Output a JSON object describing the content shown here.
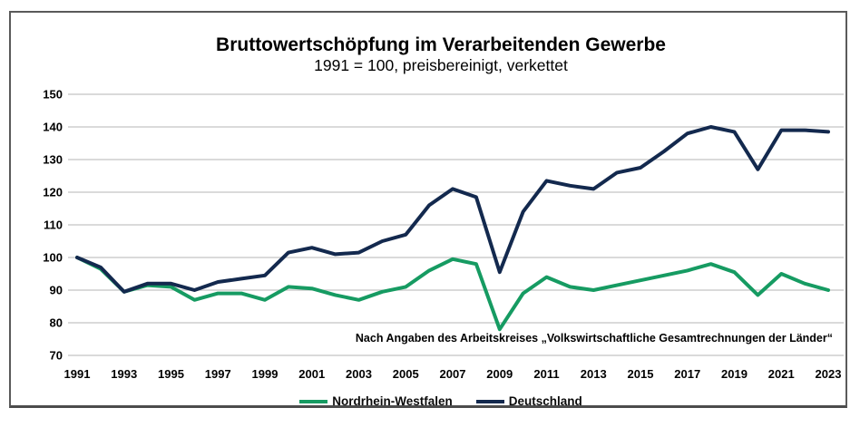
{
  "chart": {
    "title": "Bruttowertschöpfung im Verarbeitenden Gewerbe",
    "subtitle": "1991 = 100, preisbereinigt, verkettet",
    "source": "Nach Angaben des Arbeitskreises „Volkswirtschaftliche Gesamtrechnungen der Länder“",
    "legend": [
      {
        "label": "Nordrhein-Westfalen",
        "color": "#169b62"
      },
      {
        "label": "Deutschland",
        "color": "#13294e"
      }
    ]
  },
  "chart_data": {
    "type": "line",
    "title": "Bruttowertschöpfung im Verarbeitenden Gewerbe",
    "subtitle": "1991 = 100, preisbereinigt, verkettet",
    "x": [
      1991,
      1992,
      1993,
      1994,
      1995,
      1996,
      1997,
      1998,
      1999,
      2000,
      2001,
      2002,
      2003,
      2004,
      2005,
      2006,
      2007,
      2008,
      2009,
      2010,
      2011,
      2012,
      2013,
      2014,
      2015,
      2016,
      2017,
      2018,
      2019,
      2020,
      2021,
      2022,
      2023
    ],
    "series": [
      {
        "name": "Nordrhein-Westfalen",
        "color": "#169b62",
        "values": [
          100,
          96.5,
          89.5,
          91.5,
          91,
          87,
          89,
          89,
          87,
          91,
          90.5,
          88.5,
          87,
          89.5,
          91,
          96,
          99.5,
          98,
          78,
          89,
          94,
          91,
          90,
          91.5,
          93,
          94.5,
          96,
          98,
          95.5,
          88.5,
          95,
          92,
          90
        ]
      },
      {
        "name": "Deutschland",
        "color": "#13294e",
        "values": [
          100,
          97,
          89.5,
          92,
          92,
          90,
          92.5,
          93.5,
          94.5,
          101.5,
          103,
          101,
          101.5,
          105,
          107,
          116,
          121,
          118.5,
          95.5,
          114,
          123.5,
          122,
          121,
          126,
          127.5,
          132.5,
          138,
          140,
          138.5,
          127,
          139,
          139,
          138.5
        ]
      }
    ],
    "xlabel": "",
    "ylabel": "",
    "ylim": [
      70,
      150
    ],
    "y_ticks": [
      70,
      80,
      90,
      100,
      110,
      120,
      130,
      140,
      150
    ],
    "x_tick_labels": [
      "1991",
      "1993",
      "1995",
      "1997",
      "1999",
      "2001",
      "2003",
      "2005",
      "2007",
      "2009",
      "2011",
      "2013",
      "2015",
      "2017",
      "2019",
      "2021",
      "2023"
    ],
    "grid": "horizontal",
    "gridline_color": "#c3c3c3",
    "legend_position": "bottom"
  }
}
